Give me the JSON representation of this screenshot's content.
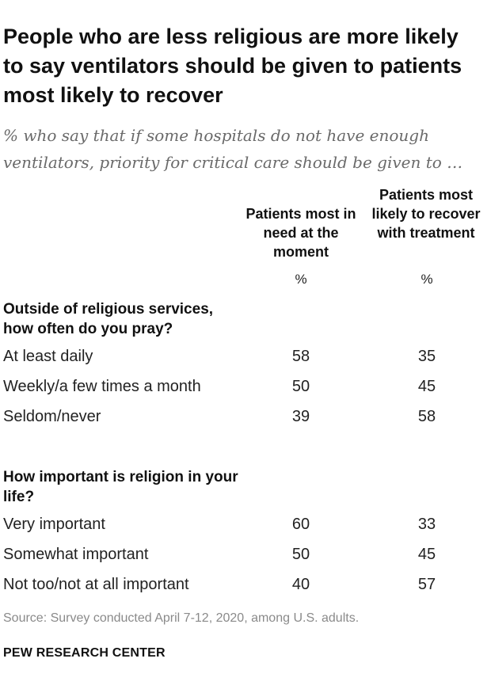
{
  "title": "People who are less religious are more likely to say ventilators should be given to patients most likely to recover",
  "subtitle": "% who say that if some hospitals do not have enough ventilators, priority for critical care should be given to …",
  "source": "Source: Survey conducted April 7-12, 2020, among U.S. adults.",
  "brand": "PEW RESEARCH CENTER",
  "chart_data": {
    "type": "table",
    "columns": [
      {
        "header": "Patients most in need at the moment",
        "unit": "%"
      },
      {
        "header": "Patients most likely to recover with treatment",
        "unit": "%"
      }
    ],
    "sections": [
      {
        "heading": "Outside of religious services, how often do you pray?",
        "rows": [
          {
            "label": "At least daily",
            "values": [
              "58",
              "35"
            ]
          },
          {
            "label": "Weekly/a few times a month",
            "values": [
              "50",
              "45"
            ]
          },
          {
            "label": "Seldom/never",
            "values": [
              "39",
              "58"
            ]
          }
        ]
      },
      {
        "heading": "How important is religion in your life?",
        "rows": [
          {
            "label": "Very important",
            "values": [
              "60",
              "33"
            ]
          },
          {
            "label": "Somewhat important",
            "values": [
              "50",
              "45"
            ]
          },
          {
            "label": "Not too/not at all important",
            "values": [
              "40",
              "57"
            ]
          }
        ]
      }
    ]
  }
}
